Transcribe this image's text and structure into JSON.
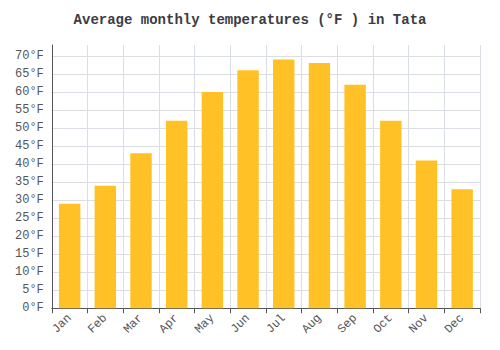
{
  "chart_data": {
    "type": "bar",
    "title": "Average monthly temperatures (°F ) in Tata",
    "categories": [
      "Jan",
      "Feb",
      "Mar",
      "Apr",
      "May",
      "Jun",
      "Jul",
      "Aug",
      "Sep",
      "Oct",
      "Nov",
      "Dec"
    ],
    "values": [
      29,
      34,
      43,
      52,
      60,
      66,
      69,
      68,
      62,
      52,
      41,
      33
    ],
    "color": "#FFC125",
    "ylim": [
      0,
      73
    ],
    "yticks": [
      {
        "value": 0,
        "label": "0°F"
      },
      {
        "value": 5,
        "label": "5°F"
      },
      {
        "value": 10,
        "label": "10°F"
      },
      {
        "value": 15,
        "label": "15°F"
      },
      {
        "value": 20,
        "label": "20°F"
      },
      {
        "value": 25,
        "label": "25°F"
      },
      {
        "value": 30,
        "label": "30°F"
      },
      {
        "value": 35,
        "label": "35°F"
      },
      {
        "value": 40,
        "label": "40°F"
      },
      {
        "value": 45,
        "label": "45°F"
      },
      {
        "value": 50,
        "label": "50°F"
      },
      {
        "value": 55,
        "label": "55°F"
      },
      {
        "value": 60,
        "label": "60°F"
      },
      {
        "value": 65,
        "label": "65°F"
      },
      {
        "value": 70,
        "label": "70°F"
      }
    ],
    "grid": true
  }
}
